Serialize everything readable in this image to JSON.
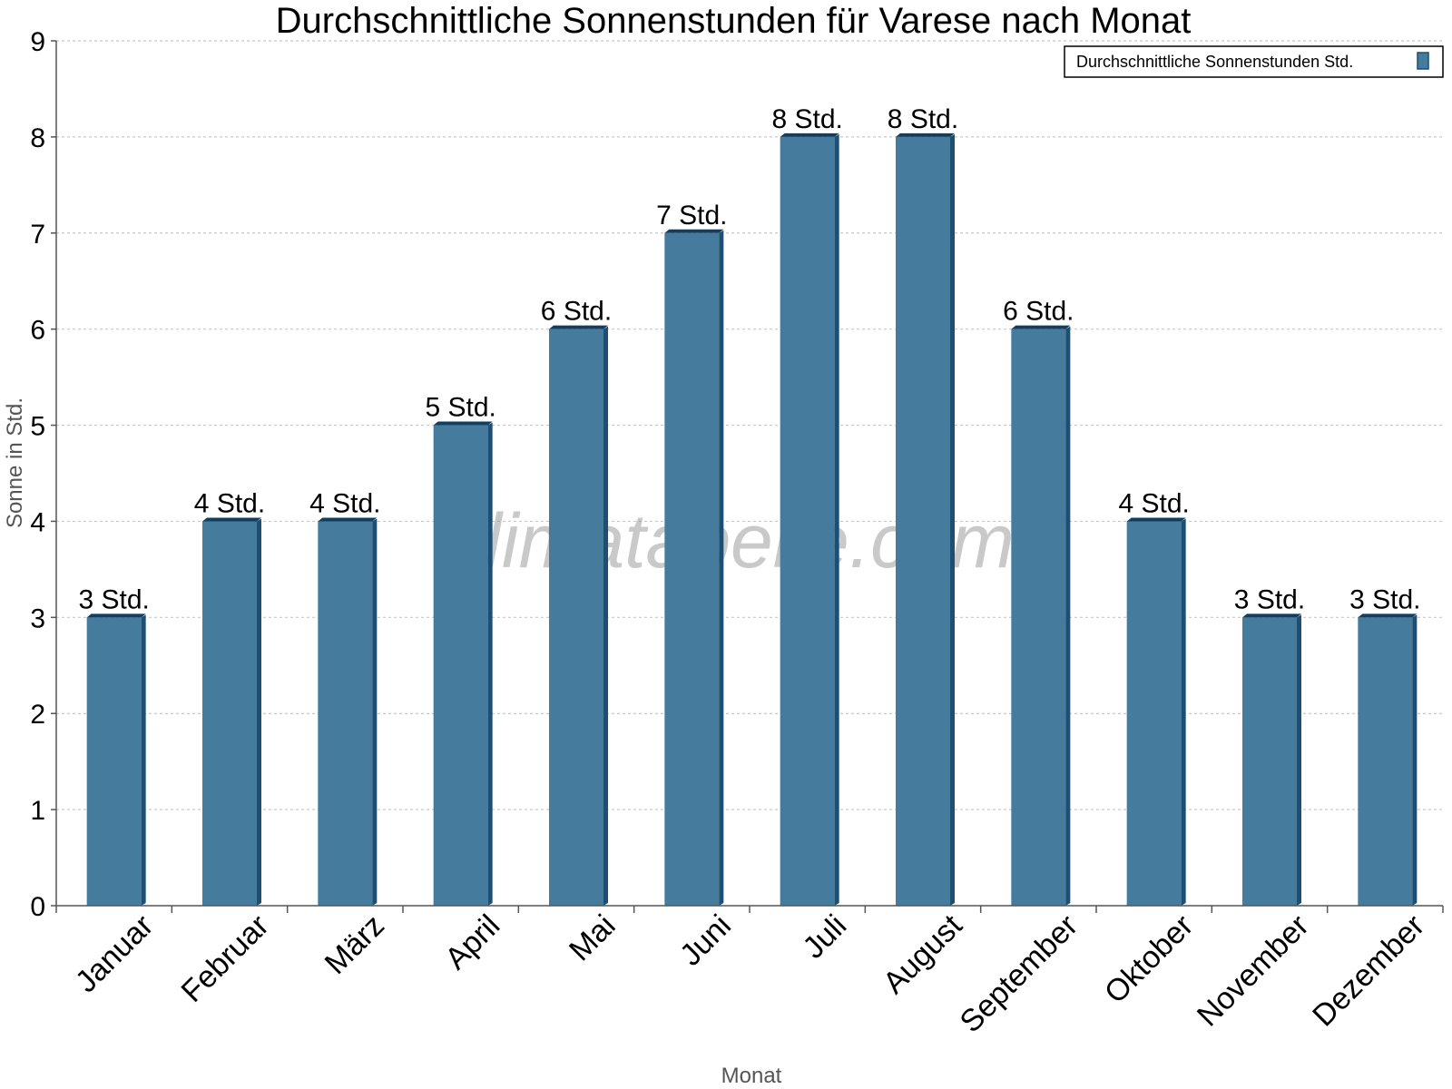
{
  "watermark": "klimatabelle.com",
  "colors": {
    "bar_face": "#457b9d",
    "bar_side": "#1d4f73",
    "bar_top": "#123f60",
    "grid": "#c8c8c8",
    "axis": "#555555"
  },
  "chart_data": {
    "type": "bar",
    "title": "Durchschnittliche Sonnenstunden für Varese nach Monat",
    "xlabel": "Monat",
    "ylabel": "Sonne in Std.",
    "ylim": [
      0,
      9
    ],
    "yticks": [
      "0",
      "1",
      "2",
      "3",
      "4",
      "5",
      "6",
      "7",
      "8",
      "9"
    ],
    "grid": true,
    "legend_position": "top-right",
    "categories": [
      "Januar",
      "Februar",
      "März",
      "April",
      "Mai",
      "Juni",
      "Juli",
      "August",
      "September",
      "Oktober",
      "November",
      "Dezember"
    ],
    "series": [
      {
        "name": "Durchschnittliche Sonnenstunden Std.",
        "values": [
          3,
          4,
          4,
          5,
          6,
          7,
          8,
          8,
          6,
          4,
          3,
          3
        ],
        "labels": [
          "3 Std.",
          "4 Std.",
          "4 Std.",
          "5 Std.",
          "6 Std.",
          "7 Std.",
          "8 Std.",
          "8 Std.",
          "6 Std.",
          "4 Std.",
          "3 Std.",
          "3 Std."
        ]
      }
    ]
  }
}
